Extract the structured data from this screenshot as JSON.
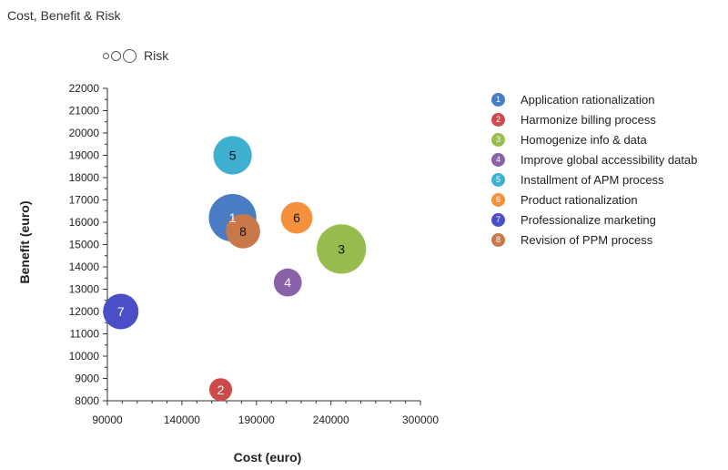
{
  "chart_data": {
    "type": "bubble",
    "title": "Cost, Benefit & Risk",
    "xlabel": "Cost (euro)",
    "ylabel": "Benefit (euro)",
    "size_legend_label": "Risk",
    "xlim": [
      90000,
      300000
    ],
    "ylim": [
      8000,
      22000
    ],
    "xticks": [
      90000,
      140000,
      190000,
      240000,
      300000
    ],
    "yticks": [
      8000,
      9000,
      10000,
      11000,
      12000,
      13000,
      14000,
      15000,
      16000,
      17000,
      18000,
      19000,
      20000,
      21000,
      22000
    ],
    "grid": false,
    "legend_position": "right",
    "series": [
      {
        "id": "1",
        "name": "Application rationalization",
        "x": 174000,
        "y": 16200,
        "risk": 2.6,
        "color": "#4a7cc4"
      },
      {
        "id": "2",
        "name": "Harmonize billing process",
        "x": 166000,
        "y": 8500,
        "risk": 0.6,
        "color": "#cd4a4a"
      },
      {
        "id": "3",
        "name": "Homogenize info & data",
        "x": 247000,
        "y": 14800,
        "risk": 2.8,
        "color": "#98bd4f"
      },
      {
        "id": "4",
        "name": "Improve global accessibility datab",
        "x": 211000,
        "y": 13300,
        "risk": 0.9,
        "color": "#8a62aa"
      },
      {
        "id": "5",
        "name": "Installment of APM process",
        "x": 174000,
        "y": 19000,
        "risk": 1.7,
        "color": "#3fb0cf"
      },
      {
        "id": "6",
        "name": "Product rationalization",
        "x": 217000,
        "y": 16200,
        "risk": 1.15,
        "color": "#f5903c"
      },
      {
        "id": "7",
        "name": "Professionalize marketing",
        "x": 99000,
        "y": 12000,
        "risk": 1.45,
        "color": "#4a4fc8"
      },
      {
        "id": "8",
        "name": "Revision of PPM process",
        "x": 181000,
        "y": 15600,
        "risk": 1.35,
        "color": "#c8784a"
      }
    ]
  }
}
